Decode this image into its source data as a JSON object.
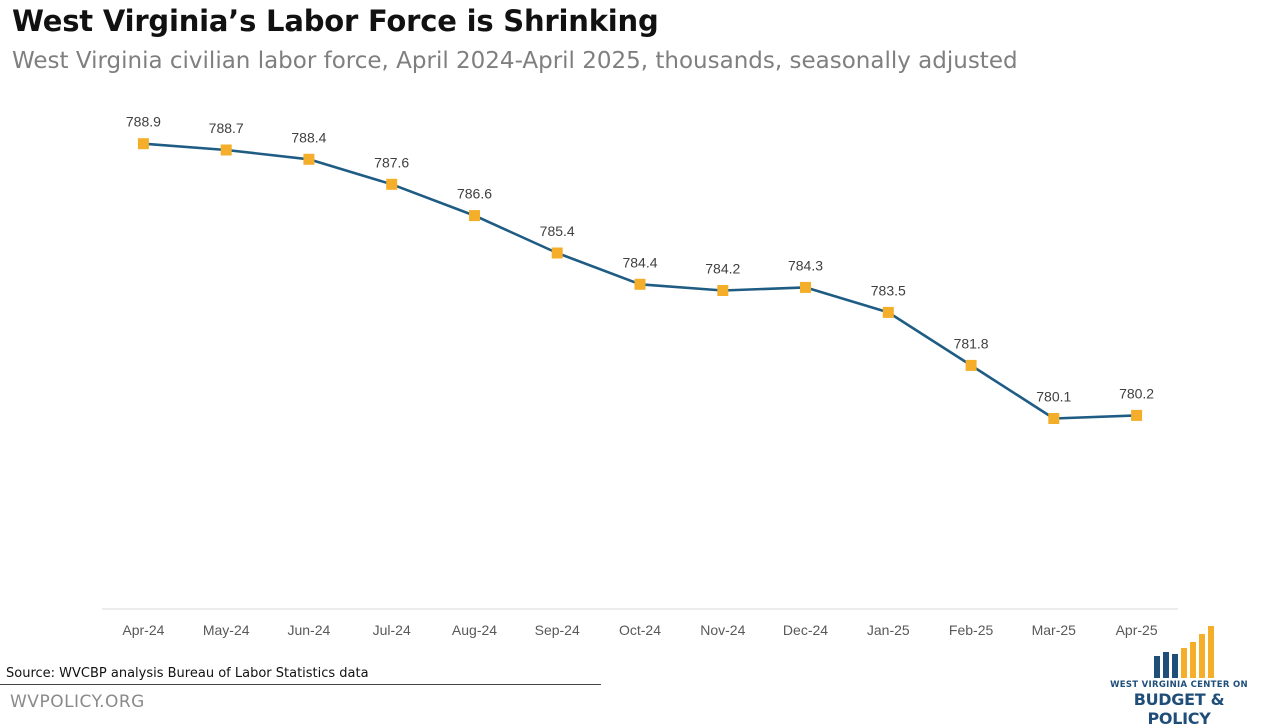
{
  "header": {
    "title": "West Virginia’s Labor Force is Shrinking",
    "subtitle": "West Virginia civilian labor force, April 2024-April 2025, thousands, seasonally adjusted"
  },
  "footer": {
    "source": "Source: WVCBP analysis Bureau of Labor Statistics data",
    "site": "WVPOLICY.ORG"
  },
  "logo": {
    "line1": "WEST VIRGINIA CENTER ON",
    "line2": "BUDGET & POLICY"
  },
  "colors": {
    "line": "#1f5c84",
    "marker": "#f4ae2a",
    "axis": "#d9d9d9",
    "tick_label": "#595959",
    "data_label": "#404040",
    "logo_blue": "#1f4e79",
    "logo_gold": "#f4ae2a"
  },
  "chart_data": {
    "type": "line",
    "title": "West Virginia’s Labor Force is Shrinking",
    "subtitle": "West Virginia civilian labor force, April 2024-April 2025, thousands, seasonally adjusted",
    "categories": [
      "Apr-24",
      "May-24",
      "Jun-24",
      "Jul-24",
      "Aug-24",
      "Sep-24",
      "Oct-24",
      "Nov-24",
      "Dec-24",
      "Jan-25",
      "Feb-25",
      "Mar-25",
      "Apr-25"
    ],
    "series": [
      {
        "values": [
          788.9,
          788.7,
          788.4,
          787.6,
          786.6,
          785.4,
          784.4,
          784.2,
          784.3,
          783.5,
          781.8,
          780.1,
          780.2
        ]
      }
    ],
    "ylim": [
      774,
      789.5
    ],
    "grid": false,
    "legend": "none",
    "marker": "square",
    "data_labels": true
  }
}
